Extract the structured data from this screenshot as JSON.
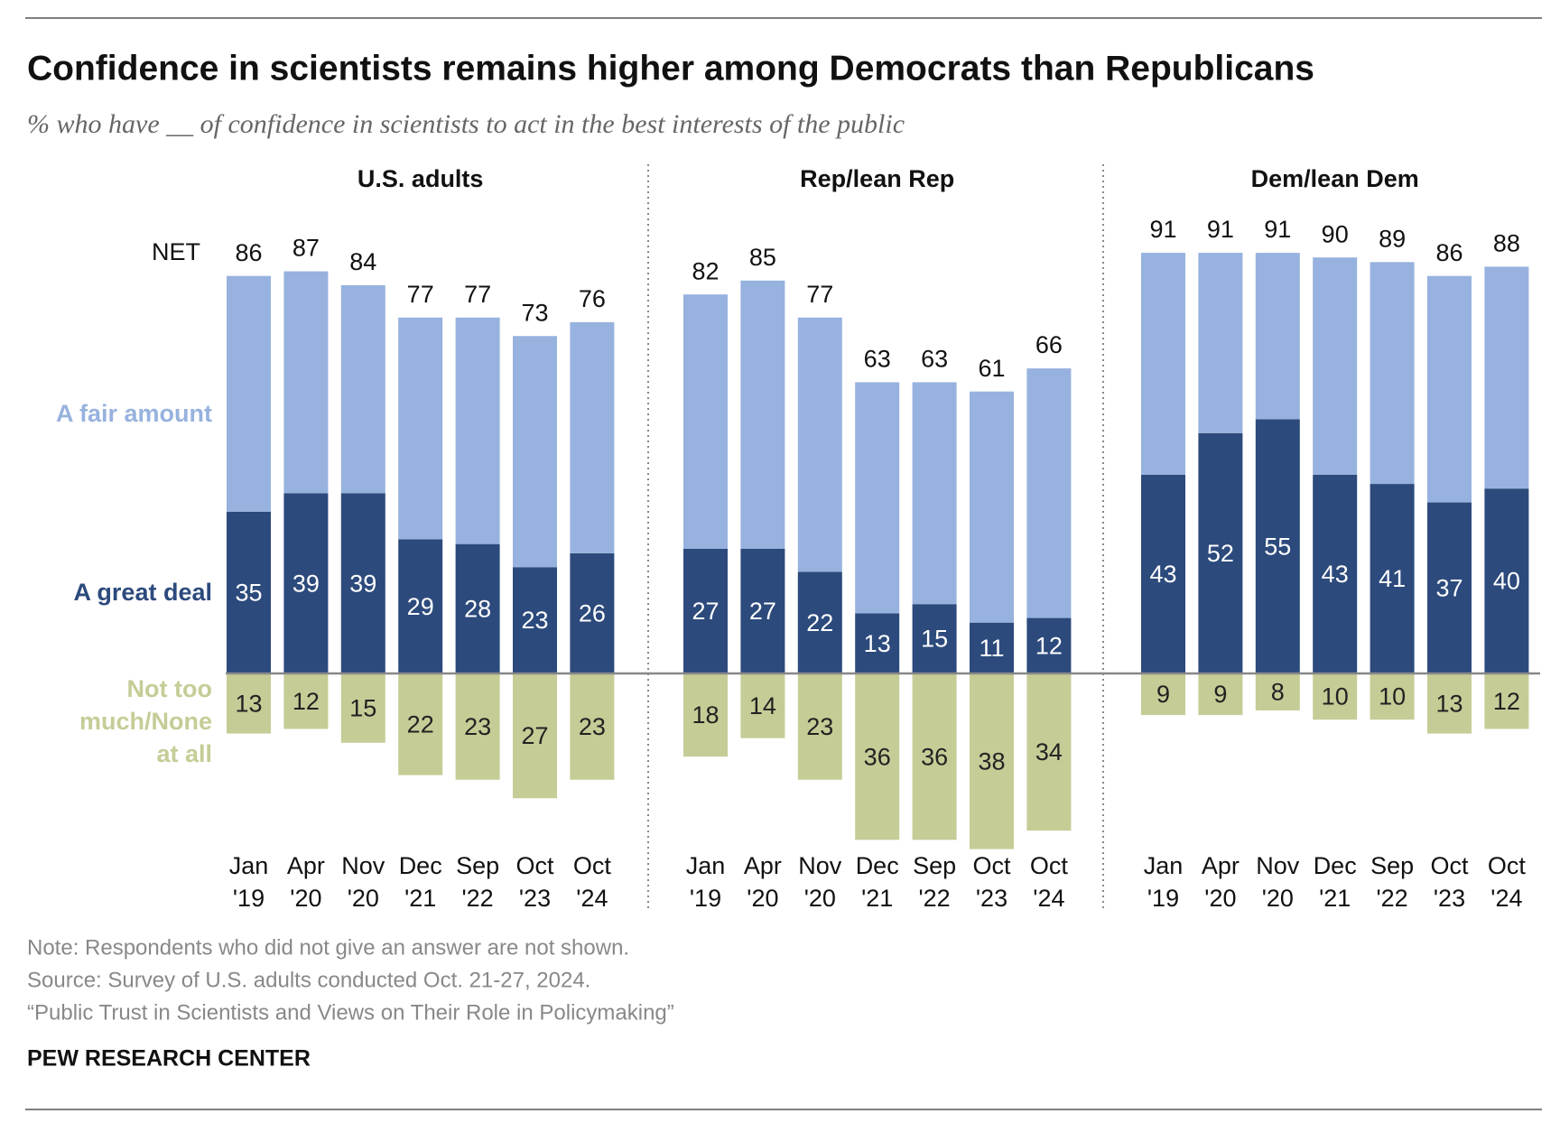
{
  "chart_data": {
    "type": "diverging_stacked_bar",
    "title": "Confidence in scientists remains higher among Democrats than Republicans",
    "subtitle": "% who have __ of confidence in scientists to act in the best interests of the public",
    "net_label": "NET",
    "panels": [
      {
        "title": "U.S. adults",
        "categories": [
          [
            "Jan",
            "'19"
          ],
          [
            "Apr",
            "'20"
          ],
          [
            "Nov",
            "'20"
          ],
          [
            "Dec",
            "'21"
          ],
          [
            "Sep",
            "'22"
          ],
          [
            "Oct",
            "'23"
          ],
          [
            "Oct",
            "'24"
          ]
        ],
        "net": [
          86,
          87,
          84,
          77,
          77,
          73,
          76
        ]
      },
      {
        "title": "Rep/lean Rep",
        "categories": [
          [
            "Jan",
            "'19"
          ],
          [
            "Apr",
            "'20"
          ],
          [
            "Nov",
            "'20"
          ],
          [
            "Dec",
            "'21"
          ],
          [
            "Sep",
            "'22"
          ],
          [
            "Oct",
            "'23"
          ],
          [
            "Oct",
            "'24"
          ]
        ],
        "net": [
          82,
          85,
          77,
          63,
          63,
          61,
          66
        ]
      },
      {
        "title": "Dem/lean Dem",
        "categories": [
          [
            "Jan",
            "'19"
          ],
          [
            "Apr",
            "'20"
          ],
          [
            "Nov",
            "'20"
          ],
          [
            "Dec",
            "'21"
          ],
          [
            "Sep",
            "'22"
          ],
          [
            "Oct",
            "'23"
          ],
          [
            "Oct",
            "'24"
          ]
        ],
        "net": [
          91,
          91,
          91,
          90,
          89,
          86,
          88
        ]
      }
    ],
    "series": [
      {
        "name": "A great deal",
        "color": "#2c4a7c",
        "label_color": "#ffffff",
        "show_labels": true,
        "values": [
          [
            35,
            39,
            39,
            29,
            28,
            23,
            26
          ],
          [
            27,
            27,
            22,
            13,
            15,
            11,
            12
          ],
          [
            43,
            52,
            55,
            43,
            41,
            37,
            40
          ]
        ]
      },
      {
        "name": "A fair amount",
        "color": "#97b2de",
        "show_labels": false,
        "values": [
          [
            51,
            48,
            45,
            48,
            49,
            50,
            50
          ],
          [
            55,
            58,
            55,
            50,
            48,
            50,
            54
          ],
          [
            48,
            39,
            36,
            47,
            48,
            49,
            48
          ]
        ]
      },
      {
        "name": "Not too much/None at all",
        "color": "#c6cc96",
        "label_color": "#222222",
        "show_labels": true,
        "below_axis": true,
        "values": [
          [
            13,
            12,
            15,
            22,
            23,
            27,
            23
          ],
          [
            18,
            14,
            23,
            36,
            36,
            38,
            34
          ],
          [
            9,
            9,
            8,
            10,
            10,
            13,
            12
          ]
        ]
      }
    ],
    "notes": [
      "Note: Respondents who did not give an answer are not shown.",
      "Source: Survey of U.S. adults conducted Oct. 21-27, 2024.",
      "“Public Trust in Scientists and Views on Their Role in Policymaking”"
    ],
    "source_org": "PEW RESEARCH CENTER"
  }
}
